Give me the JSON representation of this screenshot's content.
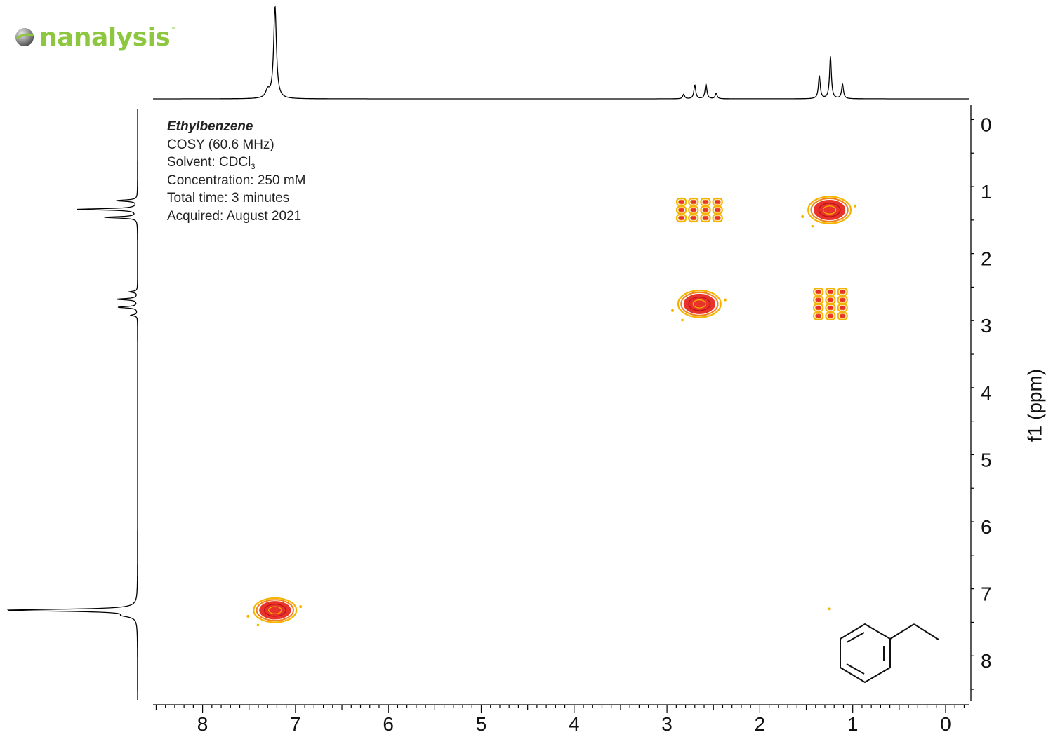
{
  "logo": {
    "text": "nanalysis",
    "tm": "™",
    "color": "#8dc63f"
  },
  "info": {
    "compound": "Ethylbenzene",
    "experiment": "COSY (60.6 MHz)",
    "solvent_prefix": "Solvent: CDCl",
    "solvent_sub": "3",
    "concentration": "Concentration: 250 mM",
    "total_time": "Total time: 3 minutes",
    "acquired": "Acquired: August 2021"
  },
  "colors": {
    "contour_outer": "#f5b400",
    "contour_mid": "#f08020",
    "contour_inner": "#e8332a",
    "contour_core": "#c1121f",
    "spectrum_line": "#000000"
  },
  "chart_data": {
    "type": "heatmap",
    "title": "",
    "xlabel": "",
    "ylabel": "f1 (ppm)",
    "xlim": [
      8.5,
      -0.25
    ],
    "ylim": [
      -0.15,
      8.6
    ],
    "x_ticks": [
      8,
      7,
      6,
      5,
      4,
      3,
      2,
      1,
      0
    ],
    "y_ticks": [
      0,
      1,
      2,
      3,
      4,
      5,
      6,
      7,
      8
    ],
    "projection_1d": {
      "peaks": [
        {
          "ppm": 7.22,
          "height": 1.0,
          "width": 0.018
        },
        {
          "ppm": 7.3,
          "height": 0.08,
          "width": 0.025
        },
        {
          "ppm": 2.82,
          "height": 0.05,
          "width": 0.012
        },
        {
          "ppm": 2.7,
          "height": 0.15,
          "width": 0.012
        },
        {
          "ppm": 2.58,
          "height": 0.16,
          "width": 0.012
        },
        {
          "ppm": 2.47,
          "height": 0.06,
          "width": 0.012
        },
        {
          "ppm": 1.36,
          "height": 0.25,
          "width": 0.012
        },
        {
          "ppm": 1.24,
          "height": 0.46,
          "width": 0.012
        },
        {
          "ppm": 1.11,
          "height": 0.16,
          "width": 0.012
        }
      ]
    },
    "cross_peaks": [
      {
        "label": "diagonal aromatic",
        "x": 7.22,
        "y": 7.22,
        "type": "blob",
        "rx": 0.23,
        "ry": 0.18
      },
      {
        "label": "CH2-CH3 cross peak",
        "x": 2.65,
        "y": 1.25,
        "type": "grid",
        "cols": 4,
        "rows": 3,
        "dx": 0.13,
        "dy": 0.12
      },
      {
        "label": "diagonal CH3",
        "x": 1.25,
        "y": 1.25,
        "type": "blob",
        "rx": 0.23,
        "ry": 0.2
      },
      {
        "label": "diagonal CH2",
        "x": 2.65,
        "y": 2.65,
        "type": "blob",
        "rx": 0.23,
        "ry": 0.2
      },
      {
        "label": "CH3-CH2 cross peak",
        "x": 1.24,
        "y": 2.65,
        "type": "grid",
        "cols": 3,
        "rows": 4,
        "dx": 0.13,
        "dy": 0.12
      }
    ]
  }
}
